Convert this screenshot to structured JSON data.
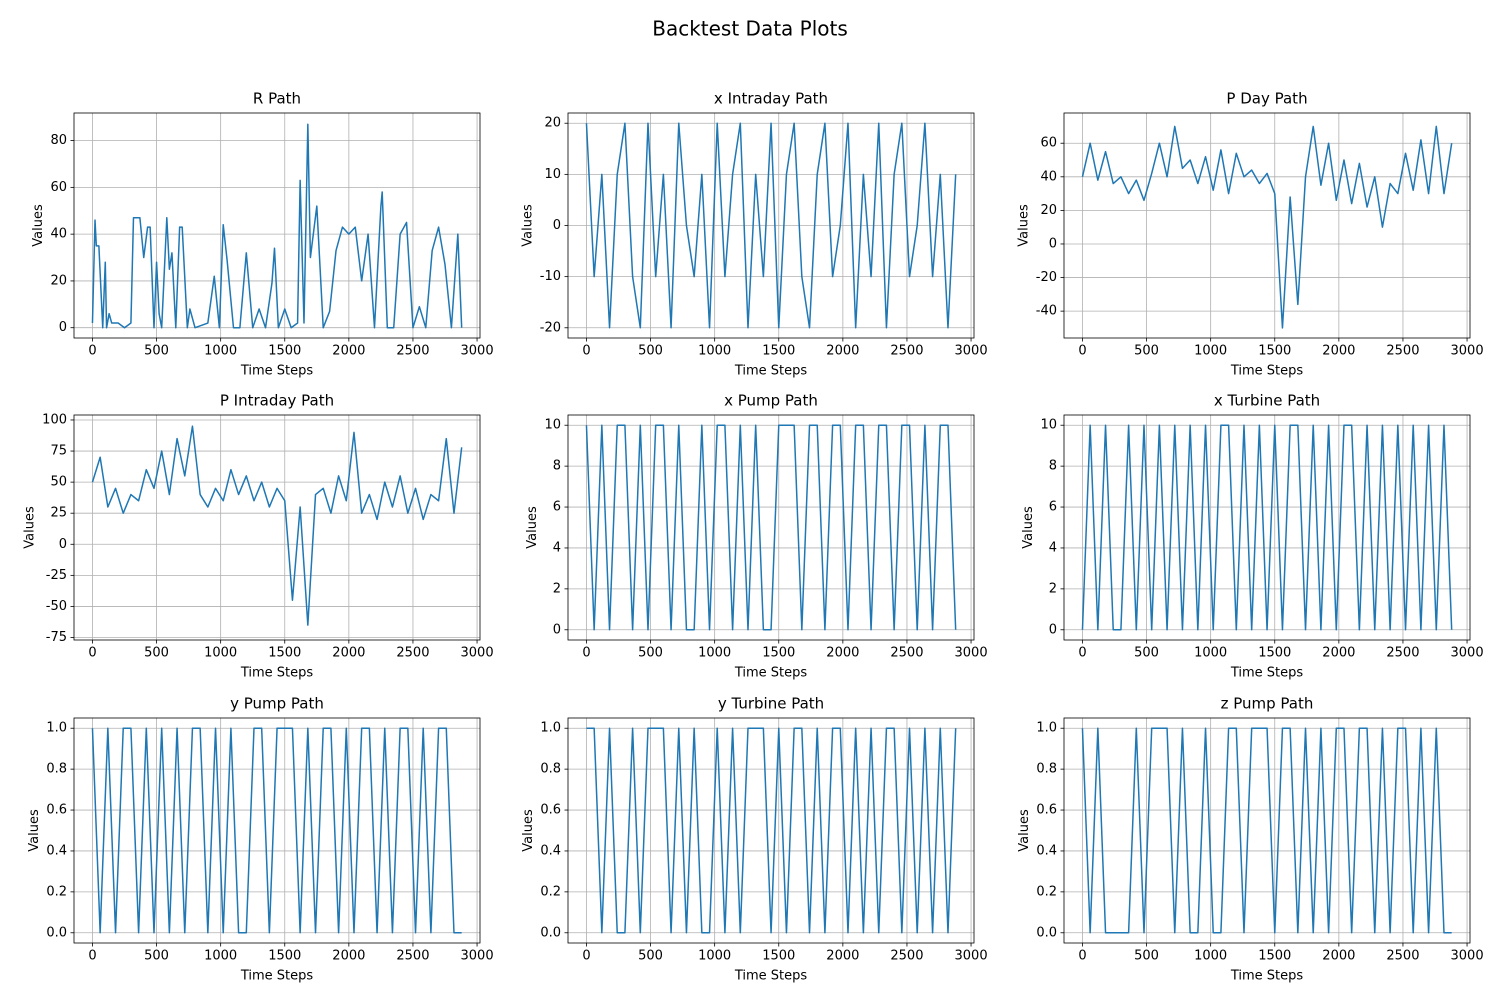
{
  "title": "Backtest Data Plots",
  "chart_data": [
    {
      "type": "line",
      "title": "R Path",
      "x_label": "Time Steps",
      "y_label": "Values",
      "color": "#1f77b4",
      "grid": true,
      "xlim": [
        -144,
        3023
      ],
      "xticks": [
        0,
        500,
        1000,
        1500,
        2000,
        2500,
        3000
      ],
      "ylim": [
        -4.4,
        91.8
      ],
      "yticks": [
        0,
        20,
        40,
        60,
        80
      ],
      "x": [
        0,
        20,
        30,
        50,
        80,
        100,
        110,
        130,
        150,
        200,
        250,
        300,
        320,
        370,
        400,
        430,
        450,
        480,
        500,
        520,
        540,
        580,
        600,
        620,
        650,
        680,
        700,
        740,
        760,
        800,
        900,
        950,
        990,
        1020,
        1050,
        1100,
        1150,
        1200,
        1250,
        1300,
        1350,
        1400,
        1420,
        1450,
        1500,
        1550,
        1600,
        1620,
        1650,
        1680,
        1700,
        1750,
        1800,
        1850,
        1900,
        1950,
        2000,
        2050,
        2100,
        2150,
        2200,
        2250,
        2260,
        2300,
        2350,
        2400,
        2450,
        2500,
        2550,
        2600,
        2650,
        2700,
        2750,
        2800,
        2850,
        2880
      ],
      "values": [
        2,
        46,
        35,
        35,
        0,
        28,
        0,
        6,
        2,
        2,
        0,
        2,
        47,
        47,
        30,
        43,
        43,
        0,
        28,
        6,
        0,
        47,
        25,
        32,
        0,
        43,
        43,
        0,
        8,
        0,
        2,
        22,
        0,
        44,
        29,
        0,
        0,
        32,
        0,
        8,
        0,
        19,
        34,
        0,
        8,
        0,
        2,
        63,
        2,
        87,
        30,
        52,
        0,
        7,
        33,
        43,
        40,
        43,
        20,
        40,
        0,
        52,
        58,
        0,
        0,
        40,
        45,
        0,
        9,
        0,
        33,
        43,
        27,
        0,
        40,
        0
      ]
    },
    {
      "type": "line",
      "title": "x Intraday Path",
      "x_label": "Time Steps",
      "y_label": "Values",
      "color": "#1f77b4",
      "grid": true,
      "xlim": [
        -144,
        3023
      ],
      "xticks": [
        0,
        500,
        1000,
        1500,
        2000,
        2500,
        3000
      ],
      "ylim": [
        -22,
        22
      ],
      "yticks": [
        -20,
        -10,
        0,
        10,
        20
      ],
      "x": [
        0,
        60,
        120,
        180,
        240,
        300,
        360,
        420,
        480,
        540,
        600,
        660,
        720,
        780,
        840,
        900,
        960,
        1020,
        1080,
        1140,
        1200,
        1260,
        1320,
        1380,
        1440,
        1500,
        1560,
        1620,
        1680,
        1740,
        1800,
        1860,
        1920,
        1980,
        2040,
        2100,
        2160,
        2220,
        2280,
        2340,
        2400,
        2460,
        2520,
        2580,
        2640,
        2700,
        2760,
        2820,
        2880
      ],
      "values": [
        20,
        -10,
        10,
        -20,
        10,
        20,
        -10,
        -20,
        20,
        -10,
        10,
        -20,
        20,
        0,
        -10,
        10,
        -20,
        20,
        -10,
        10,
        20,
        -20,
        10,
        -10,
        20,
        -20,
        10,
        20,
        -10,
        -20,
        10,
        20,
        -10,
        0,
        20,
        -20,
        10,
        -10,
        20,
        -20,
        10,
        20,
        -10,
        0,
        20,
        -10,
        10,
        -20,
        10
      ]
    },
    {
      "type": "line",
      "title": "P Day Path",
      "x_label": "Time Steps",
      "y_label": "Values",
      "color": "#1f77b4",
      "grid": true,
      "xlim": [
        -144,
        3023
      ],
      "xticks": [
        0,
        500,
        1000,
        1500,
        2000,
        2500,
        3000
      ],
      "ylim": [
        -56,
        78
      ],
      "yticks": [
        -40,
        -20,
        0,
        20,
        40,
        60
      ],
      "x": [
        0,
        60,
        120,
        180,
        240,
        300,
        360,
        420,
        480,
        540,
        600,
        660,
        720,
        780,
        840,
        900,
        960,
        1020,
        1080,
        1140,
        1200,
        1260,
        1320,
        1380,
        1440,
        1500,
        1560,
        1620,
        1680,
        1740,
        1800,
        1860,
        1920,
        1980,
        2040,
        2100,
        2160,
        2220,
        2280,
        2340,
        2400,
        2460,
        2520,
        2580,
        2640,
        2700,
        2760,
        2820,
        2880
      ],
      "values": [
        40,
        60,
        38,
        55,
        36,
        40,
        30,
        38,
        26,
        42,
        60,
        40,
        70,
        45,
        50,
        36,
        52,
        32,
        56,
        30,
        54,
        40,
        44,
        36,
        42,
        30,
        -50,
        28,
        -36,
        40,
        70,
        35,
        60,
        26,
        50,
        24,
        48,
        22,
        40,
        10,
        36,
        30,
        54,
        32,
        62,
        30,
        70,
        30,
        60
      ]
    },
    {
      "type": "line",
      "title": "P Intraday Path",
      "x_label": "Time Steps",
      "y_label": "Values",
      "color": "#1f77b4",
      "grid": true,
      "xlim": [
        -144,
        3023
      ],
      "xticks": [
        0,
        500,
        1000,
        1500,
        2000,
        2500,
        3000
      ],
      "ylim": [
        -77,
        104
      ],
      "yticks": [
        -75,
        -50,
        -25,
        0,
        25,
        50,
        75,
        100
      ],
      "x": [
        0,
        60,
        120,
        180,
        240,
        300,
        360,
        420,
        480,
        540,
        600,
        660,
        720,
        780,
        840,
        900,
        960,
        1020,
        1080,
        1140,
        1200,
        1260,
        1320,
        1380,
        1440,
        1500,
        1560,
        1620,
        1680,
        1740,
        1800,
        1860,
        1920,
        1980,
        2040,
        2100,
        2160,
        2220,
        2280,
        2340,
        2400,
        2460,
        2520,
        2580,
        2640,
        2700,
        2760,
        2820,
        2880
      ],
      "values": [
        50,
        70,
        30,
        45,
        25,
        40,
        35,
        60,
        45,
        75,
        40,
        85,
        55,
        95,
        40,
        30,
        45,
        35,
        60,
        40,
        55,
        35,
        50,
        30,
        45,
        35,
        -45,
        30,
        -65,
        40,
        45,
        25,
        55,
        35,
        90,
        25,
        40,
        20,
        50,
        30,
        55,
        25,
        45,
        20,
        40,
        35,
        85,
        25,
        78
      ]
    },
    {
      "type": "line",
      "title": "x Pump Path",
      "x_label": "Time Steps",
      "y_label": "Values",
      "color": "#1f77b4",
      "grid": true,
      "xlim": [
        -144,
        3023
      ],
      "xticks": [
        0,
        500,
        1000,
        1500,
        2000,
        2500,
        3000
      ],
      "ylim": [
        -0.5,
        10.5
      ],
      "yticks": [
        0,
        2,
        4,
        6,
        8,
        10
      ],
      "x": [
        0,
        60,
        120,
        180,
        240,
        300,
        360,
        420,
        480,
        540,
        600,
        660,
        720,
        780,
        840,
        900,
        960,
        1020,
        1080,
        1140,
        1200,
        1260,
        1320,
        1380,
        1440,
        1500,
        1560,
        1620,
        1680,
        1740,
        1800,
        1860,
        1920,
        1980,
        2040,
        2100,
        2160,
        2220,
        2280,
        2340,
        2400,
        2460,
        2520,
        2580,
        2640,
        2700,
        2760,
        2820,
        2880
      ],
      "values": [
        10,
        0,
        10,
        0,
        10,
        10,
        0,
        10,
        0,
        10,
        10,
        0,
        10,
        0,
        0,
        10,
        0,
        10,
        10,
        0,
        10,
        0,
        10,
        0,
        0,
        10,
        10,
        10,
        0,
        10,
        10,
        0,
        10,
        10,
        0,
        10,
        10,
        0,
        10,
        10,
        0,
        10,
        10,
        0,
        10,
        0,
        10,
        10,
        0
      ]
    },
    {
      "type": "line",
      "title": "x Turbine Path",
      "x_label": "Time Steps",
      "y_label": "Values",
      "color": "#1f77b4",
      "grid": true,
      "xlim": [
        -144,
        3023
      ],
      "xticks": [
        0,
        500,
        1000,
        1500,
        2000,
        2500,
        3000
      ],
      "ylim": [
        -0.5,
        10.5
      ],
      "yticks": [
        0,
        2,
        4,
        6,
        8,
        10
      ],
      "x": [
        0,
        60,
        120,
        180,
        240,
        300,
        360,
        420,
        480,
        540,
        600,
        660,
        720,
        780,
        840,
        900,
        960,
        1020,
        1080,
        1140,
        1200,
        1260,
        1320,
        1380,
        1440,
        1500,
        1560,
        1620,
        1680,
        1740,
        1800,
        1860,
        1920,
        1980,
        2040,
        2100,
        2160,
        2220,
        2280,
        2340,
        2400,
        2460,
        2520,
        2580,
        2640,
        2700,
        2760,
        2820,
        2880
      ],
      "values": [
        0,
        10,
        0,
        10,
        0,
        0,
        10,
        0,
        10,
        0,
        10,
        0,
        10,
        0,
        10,
        0,
        10,
        0,
        10,
        10,
        0,
        10,
        0,
        10,
        0,
        10,
        0,
        10,
        10,
        0,
        10,
        0,
        10,
        0,
        10,
        10,
        0,
        10,
        0,
        10,
        0,
        10,
        0,
        10,
        0,
        10,
        0,
        10,
        0
      ]
    },
    {
      "type": "line",
      "title": "y Pump Path",
      "x_label": "Time Steps",
      "y_label": "Values",
      "color": "#1f77b4",
      "grid": true,
      "xlim": [
        -144,
        3023
      ],
      "xticks": [
        0,
        500,
        1000,
        1500,
        2000,
        2500,
        3000
      ],
      "ylim": [
        -0.05,
        1.05
      ],
      "yticks": [
        {
          "value": 0,
          "label": "0.0"
        },
        0.2,
        0.4,
        0.6,
        0.8,
        {
          "value": 1,
          "label": "1.0"
        }
      ],
      "x": [
        0,
        60,
        120,
        180,
        240,
        300,
        360,
        420,
        480,
        540,
        600,
        660,
        720,
        780,
        840,
        900,
        960,
        1020,
        1080,
        1140,
        1200,
        1260,
        1320,
        1380,
        1440,
        1500,
        1560,
        1620,
        1680,
        1740,
        1800,
        1860,
        1920,
        1980,
        2040,
        2100,
        2160,
        2220,
        2280,
        2340,
        2400,
        2460,
        2520,
        2580,
        2640,
        2700,
        2760,
        2820,
        2880
      ],
      "values": [
        1,
        0,
        1,
        0,
        1,
        1,
        0,
        1,
        0,
        1,
        0,
        1,
        0,
        1,
        1,
        0,
        1,
        0,
        1,
        0,
        0,
        1,
        1,
        0,
        1,
        1,
        1,
        0,
        1,
        0,
        1,
        1,
        0,
        1,
        0,
        1,
        1,
        0,
        1,
        0,
        1,
        1,
        0,
        1,
        0,
        1,
        1,
        0,
        0
      ]
    },
    {
      "type": "line",
      "title": "y Turbine Path",
      "x_label": "Time Steps",
      "y_label": "Values",
      "color": "#1f77b4",
      "grid": true,
      "xlim": [
        -144,
        3023
      ],
      "xticks": [
        0,
        500,
        1000,
        1500,
        2000,
        2500,
        3000
      ],
      "ylim": [
        -0.05,
        1.05
      ],
      "yticks": [
        {
          "value": 0,
          "label": "0.0"
        },
        0.2,
        0.4,
        0.6,
        0.8,
        {
          "value": 1,
          "label": "1.0"
        }
      ],
      "x": [
        0,
        60,
        120,
        180,
        240,
        300,
        360,
        420,
        480,
        540,
        600,
        660,
        720,
        780,
        840,
        900,
        960,
        1020,
        1080,
        1140,
        1200,
        1260,
        1320,
        1380,
        1440,
        1500,
        1560,
        1620,
        1680,
        1740,
        1800,
        1860,
        1920,
        1980,
        2040,
        2100,
        2160,
        2220,
        2280,
        2340,
        2400,
        2460,
        2520,
        2580,
        2640,
        2700,
        2760,
        2820,
        2880
      ],
      "values": [
        1,
        1,
        0,
        1,
        0,
        0,
        1,
        0,
        1,
        1,
        1,
        0,
        1,
        0,
        1,
        0,
        0,
        1,
        0,
        1,
        0,
        1,
        1,
        1,
        0,
        1,
        0,
        1,
        1,
        0,
        1,
        0,
        1,
        1,
        0,
        1,
        0,
        1,
        0,
        1,
        1,
        0,
        1,
        0,
        1,
        0,
        1,
        0,
        1
      ]
    },
    {
      "type": "line",
      "title": "z Pump Path",
      "x_label": "Time Steps",
      "y_label": "Values",
      "color": "#1f77b4",
      "grid": true,
      "xlim": [
        -144,
        3023
      ],
      "xticks": [
        0,
        500,
        1000,
        1500,
        2000,
        2500,
        3000
      ],
      "ylim": [
        -0.05,
        1.05
      ],
      "yticks": [
        {
          "value": 0,
          "label": "0.0"
        },
        0.2,
        0.4,
        0.6,
        0.8,
        {
          "value": 1,
          "label": "1.0"
        }
      ],
      "x": [
        0,
        60,
        120,
        180,
        240,
        300,
        360,
        420,
        480,
        540,
        600,
        660,
        720,
        780,
        840,
        900,
        960,
        1020,
        1080,
        1140,
        1200,
        1260,
        1320,
        1380,
        1440,
        1500,
        1560,
        1620,
        1680,
        1740,
        1800,
        1860,
        1920,
        1980,
        2040,
        2100,
        2160,
        2220,
        2280,
        2340,
        2400,
        2460,
        2520,
        2580,
        2640,
        2700,
        2760,
        2820,
        2880
      ],
      "values": [
        1,
        0,
        1,
        0,
        0,
        0,
        0,
        1,
        0,
        1,
        1,
        1,
        0,
        1,
        0,
        0,
        1,
        0,
        0,
        1,
        1,
        0,
        1,
        1,
        1,
        0,
        1,
        1,
        0,
        1,
        0,
        1,
        0,
        1,
        1,
        0,
        1,
        1,
        0,
        1,
        0,
        1,
        1,
        0,
        1,
        0,
        1,
        0,
        0
      ]
    }
  ]
}
